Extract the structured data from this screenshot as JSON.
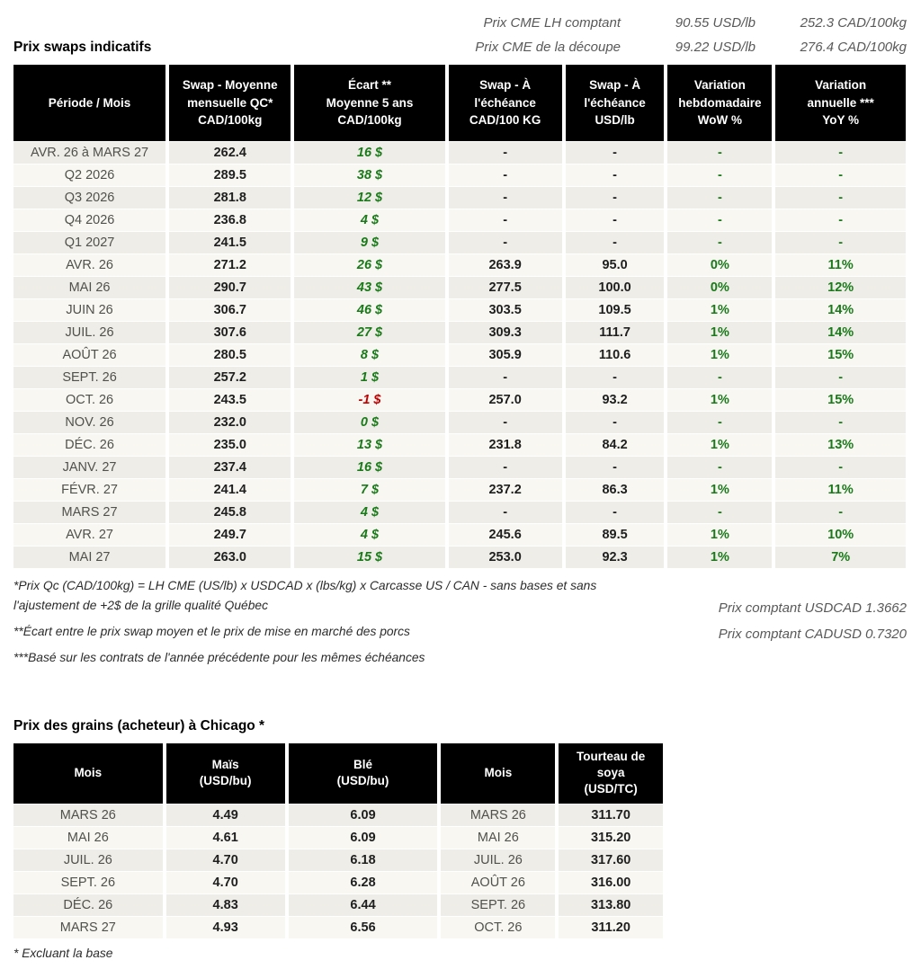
{
  "topbar": {
    "lines": [
      {
        "label": "Prix CME LH comptant",
        "usd": "90.55 USD/lb",
        "cad": "252.3 CAD/100kg"
      },
      {
        "label": "Prix CME de la découpe",
        "usd": "99.22 USD/lb",
        "cad": "276.4 CAD/100kg"
      }
    ]
  },
  "swaps_table": {
    "title": "Prix swaps indicatifs",
    "columns": [
      "Période / Mois",
      "Swap - Moyenne\nmensuelle QC*\nCAD/100kg",
      "Écart **\nMoyenne 5 ans\nCAD/100kg",
      "Swap - À\nl'échéance\nCAD/100 KG",
      "Swap - À\nl'échéance\nUSD/lb",
      "Variation\nhebdomadaire\nWoW %",
      "Variation\nannuelle ***\nYoY %"
    ],
    "rows": [
      [
        "AVR. 26 à  MARS 27",
        "262.4",
        "16 $",
        "-",
        "-",
        "-",
        "-"
      ],
      [
        "Q2 2026",
        "289.5",
        "38 $",
        "-",
        "-",
        "-",
        "-"
      ],
      [
        "Q3 2026",
        "281.8",
        "12 $",
        "-",
        "-",
        "-",
        "-"
      ],
      [
        "Q4 2026",
        "236.8",
        "4 $",
        "-",
        "-",
        "-",
        "-"
      ],
      [
        "Q1 2027",
        "241.5",
        "9 $",
        "-",
        "-",
        "-",
        "-"
      ],
      [
        "AVR. 26",
        "271.2",
        "26 $",
        "263.9",
        "95.0",
        "0%",
        "11%"
      ],
      [
        "MAI 26",
        "290.7",
        "43 $",
        "277.5",
        "100.0",
        "0%",
        "12%"
      ],
      [
        "JUIN 26",
        "306.7",
        "46 $",
        "303.5",
        "109.5",
        "1%",
        "14%"
      ],
      [
        "JUIL. 26",
        "307.6",
        "27 $",
        "309.3",
        "111.7",
        "1%",
        "14%"
      ],
      [
        "AOÛT 26",
        "280.5",
        "8 $",
        "305.9",
        "110.6",
        "1%",
        "15%"
      ],
      [
        "SEPT. 26",
        "257.2",
        "1 $",
        "-",
        "-",
        "-",
        "-"
      ],
      [
        "OCT. 26",
        "243.5",
        "-1 $",
        "257.0",
        "93.2",
        "1%",
        "15%"
      ],
      [
        "NOV. 26",
        "232.0",
        "0 $",
        "-",
        "-",
        "-",
        "-"
      ],
      [
        "DÉC. 26",
        "235.0",
        "13 $",
        "231.8",
        "84.2",
        "1%",
        "13%"
      ],
      [
        "JANV. 27",
        "237.4",
        "16 $",
        "-",
        "-",
        "-",
        "-"
      ],
      [
        "FÉVR. 27",
        "241.4",
        "7 $",
        "237.2",
        "86.3",
        "1%",
        "11%"
      ],
      [
        "MARS 27",
        "245.8",
        "4 $",
        "-",
        "-",
        "-",
        "-"
      ],
      [
        "AVR. 27",
        "249.7",
        "4 $",
        "245.6",
        "89.5",
        "1%",
        "10%"
      ],
      [
        "MAI 27",
        "263.0",
        "15 $",
        "253.0",
        "92.3",
        "1%",
        "7%"
      ]
    ]
  },
  "footnotes": {
    "note1": "*Prix Qc (CAD/100kg) = LH CME (US/lb) x USDCAD x (lbs/kg) x Carcasse US / CAN - sans bases et sans l'ajustement de +2$ de la grille qualité Québec",
    "note2": "**Écart entre le prix swap moyen et le prix de mise en marché des porcs",
    "note3": "***Basé sur les contrats de l'année précédente pour les mêmes échéances",
    "spot_usdcad": "Prix comptant USDCAD 1.3662",
    "spot_cadusd": "Prix comptant CADUSD 0.7320"
  },
  "grains_table": {
    "title": "Prix des grains (acheteur) à Chicago *",
    "columns": [
      "Mois",
      "Maïs\n(USD/bu)",
      "Blé\n(USD/bu)",
      "Mois",
      "Tourteau de\nsoya\n(USD/TC)"
    ],
    "rows": [
      [
        "MARS 26",
        "4.49",
        "6.09",
        "MARS 26",
        "311.70"
      ],
      [
        "MAI 26",
        "4.61",
        "6.09",
        "MAI 26",
        "315.20"
      ],
      [
        "JUIL. 26",
        "4.70",
        "6.18",
        "JUIL. 26",
        "317.60"
      ],
      [
        "SEPT. 26",
        "4.70",
        "6.28",
        "AOÛT 26",
        "316.00"
      ],
      [
        "DÉC. 26",
        "4.83",
        "6.44",
        "SEPT. 26",
        "313.80"
      ],
      [
        "MARS 27",
        "4.93",
        "6.56",
        "OCT. 26",
        "311.20"
      ]
    ],
    "footnote": "* Excluant la base"
  },
  "colors": {
    "positive_green": "#1a7a1a",
    "negative_red": "#c00000",
    "header_bg": "#000000",
    "period_col_bg": "#c6c5c1"
  }
}
